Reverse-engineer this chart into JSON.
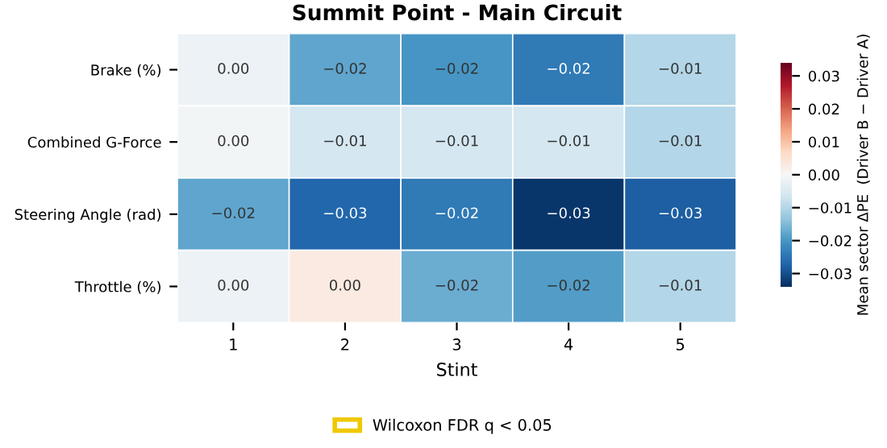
{
  "chart_data": {
    "type": "heatmap",
    "title": "Summit Point - Main Circuit",
    "xlabel": "Stint",
    "clabel": "Mean sector ΔPE  (Driver B − Driver A)",
    "categories": [
      "1",
      "2",
      "3",
      "4",
      "5"
    ],
    "y_categories": [
      "Brake (%)",
      "Combined G-Force",
      "Steering Angle (rad)",
      "Throttle (%)"
    ],
    "cells": [
      [
        -0.002,
        -0.018,
        -0.02,
        -0.024,
        -0.01
      ],
      [
        -0.001,
        -0.006,
        -0.006,
        -0.006,
        -0.01
      ],
      [
        -0.018,
        -0.027,
        -0.024,
        -0.033,
        -0.028
      ],
      [
        -0.002,
        0.003,
        -0.017,
        -0.019,
        -0.01
      ]
    ],
    "cell_labels": [
      [
        "0.00",
        "−0.02",
        "−0.02",
        "−0.02",
        "−0.01"
      ],
      [
        "0.00",
        "−0.01",
        "−0.01",
        "−0.01",
        "−0.01"
      ],
      [
        "−0.02",
        "−0.03",
        "−0.02",
        "−0.03",
        "−0.03"
      ],
      [
        "0.00",
        "0.00",
        "−0.02",
        "−0.02",
        "−0.01"
      ]
    ],
    "clim": [
      -0.034,
      0.034
    ],
    "cticks": [
      {
        "value": 0.03,
        "label": "0.03"
      },
      {
        "value": 0.02,
        "label": "0.02"
      },
      {
        "value": 0.01,
        "label": "0.01"
      },
      {
        "value": 0.0,
        "label": "0.00"
      },
      {
        "value": -0.01,
        "label": "−0.01"
      },
      {
        "value": -0.02,
        "label": "−0.02"
      },
      {
        "value": -0.03,
        "label": "−0.03"
      }
    ],
    "series": [
      {
        "name": "Wilcoxon FDR q < 0.05",
        "color": "#f0c800",
        "values": [
          null,
          null,
          null,
          null,
          null
        ]
      }
    ],
    "legend": "bottom"
  }
}
